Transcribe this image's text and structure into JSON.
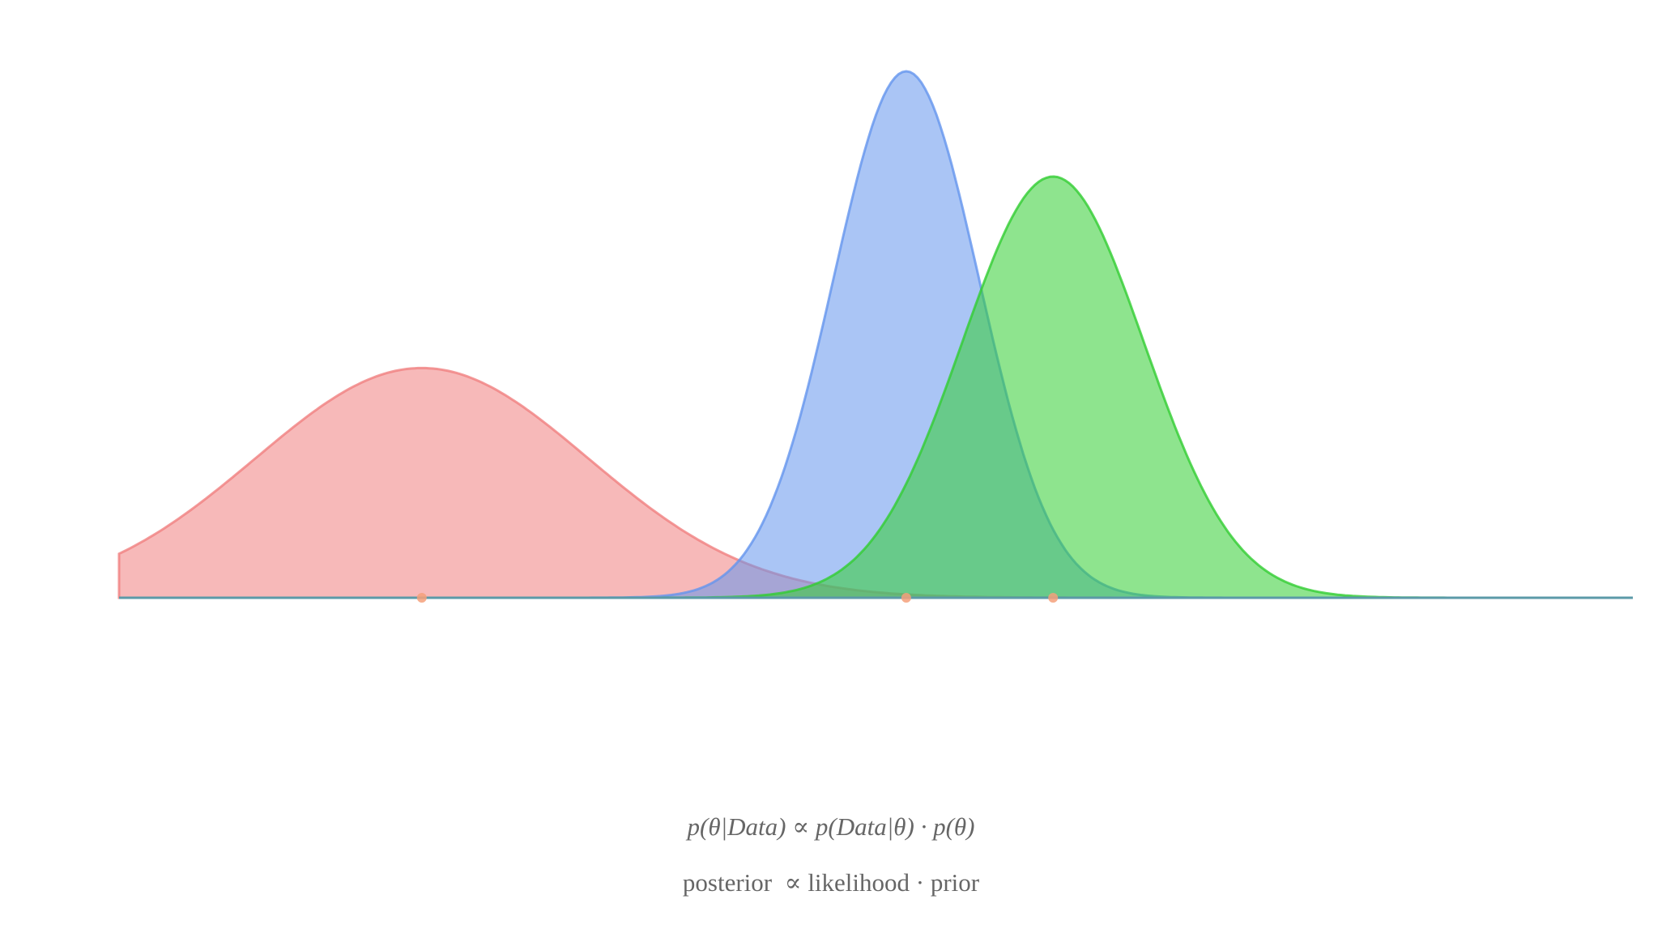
{
  "chart_data": {
    "type": "area",
    "x_range": [
      0,
      10
    ],
    "grid": false,
    "series": [
      {
        "role": "prior",
        "color": "#f08080",
        "mean": 2,
        "sd": 1.1
      },
      {
        "role": "posterior",
        "color": "#6495ed",
        "mean": 5.2,
        "sd": 0.48
      },
      {
        "role": "likelihood",
        "color": "#32cd32",
        "mean": 6.17,
        "sd": 0.6
      }
    ],
    "markers": [
      {
        "x": 2,
        "color": "#f5a07a"
      },
      {
        "x": 5.2,
        "color": "#f5a07a"
      },
      {
        "x": 6.17,
        "color": "#f5a07a"
      }
    ],
    "baseline_color": "#5b9aa8"
  },
  "formula": {
    "math": "p(θ|Data) ∝ p(Data|θ) · p(θ)",
    "words": "posterior  ∝ likelihood · prior"
  }
}
